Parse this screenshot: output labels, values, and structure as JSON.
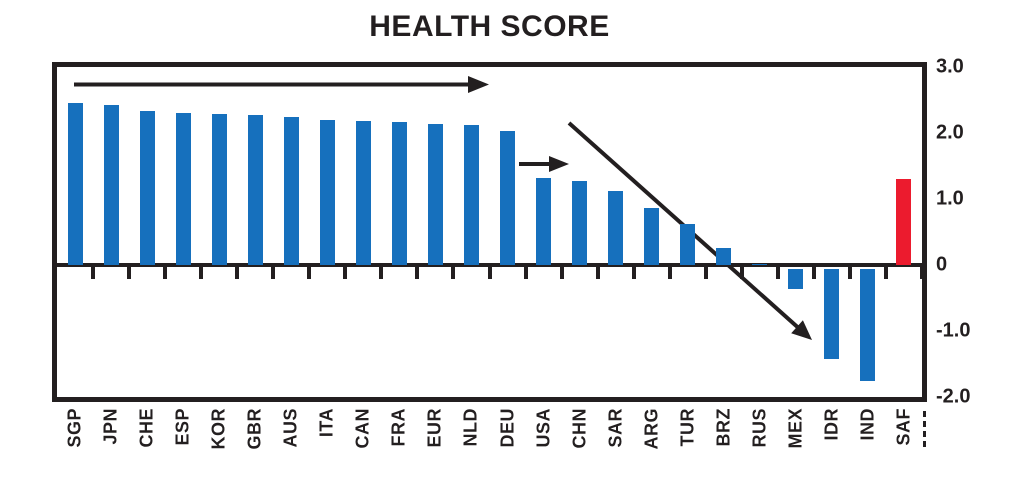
{
  "title": "HEALTH SCORE",
  "chart_data": {
    "type": "bar",
    "title": "HEALTH SCORE",
    "categories": [
      "SGP",
      "JPN",
      "CHE",
      "ESP",
      "KOR",
      "GBR",
      "AUS",
      "ITA",
      "CAN",
      "FRA",
      "EUR",
      "NLD",
      "DEU",
      "USA",
      "CHN",
      "SAR",
      "ARG",
      "TUR",
      "BRZ",
      "RUS",
      "MEX",
      "IDR",
      "IND",
      "SAF"
    ],
    "values": [
      2.45,
      2.42,
      2.33,
      2.3,
      2.29,
      2.28,
      2.24,
      2.2,
      2.18,
      2.17,
      2.14,
      2.12,
      2.03,
      1.32,
      1.27,
      1.12,
      0.87,
      0.62,
      0.26,
      0.02,
      -0.37,
      -1.42,
      -1.76,
      1.3
    ],
    "xlabel": "",
    "ylabel": "",
    "ylim": [
      -2.0,
      3.0
    ],
    "grid": false,
    "legend": "none",
    "y_axis_side": "right",
    "y_axis": {
      "labels": [
        "3.0",
        "2.0",
        "1.0",
        "0",
        "-1.0",
        "-2.0"
      ],
      "values": [
        3,
        2,
        1,
        0,
        -1,
        -2
      ]
    },
    "bar_color": "#1670bd",
    "highlight_category": "SAF",
    "highlight_color": "#ec1b2e",
    "axis_color": "#231f20",
    "annotations": [
      {
        "name": "long-plateau-arrow",
        "type": "arrow",
        "direction": "right",
        "spans_categories": [
          "SGP",
          "DEU"
        ]
      },
      {
        "name": "short-plateau-arrow",
        "type": "arrow",
        "direction": "right",
        "spans_categories": [
          "USA",
          "CHN"
        ]
      },
      {
        "name": "decline-arrow",
        "type": "arrow",
        "direction": "down-right",
        "spans_categories": [
          "CHN",
          "IDR"
        ]
      }
    ],
    "axis_continuation_dashes_after": "SAF"
  }
}
